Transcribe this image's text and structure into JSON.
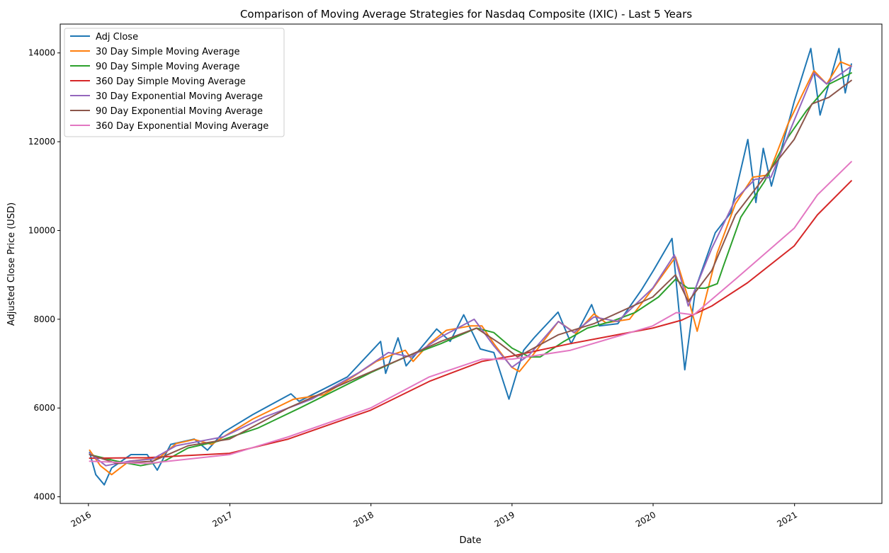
{
  "chart_data": {
    "type": "line",
    "title": "Comparison of Moving Average Strategies for Nasdaq Composite (IXIC) - Last 5 Years",
    "xlabel": "Date",
    "ylabel": "Adjusted Close Price (USD)",
    "xlim": [
      "2015-10-20",
      "2021-08-15"
    ],
    "ylim": [
      3850,
      14650
    ],
    "x_ticks": [
      {
        "date": "2016-01-01",
        "label": "2016"
      },
      {
        "date": "2017-01-01",
        "label": "2017"
      },
      {
        "date": "2018-01-01",
        "label": "2018"
      },
      {
        "date": "2019-01-01",
        "label": "2019"
      },
      {
        "date": "2020-01-01",
        "label": "2020"
      },
      {
        "date": "2021-01-01",
        "label": "2021"
      }
    ],
    "y_ticks": [
      4000,
      6000,
      8000,
      10000,
      12000,
      14000
    ],
    "grid": false,
    "legend_position": "top-left",
    "series": [
      {
        "name": "Adj Close",
        "color": "#1f77b4",
        "x": [
          "2016-01-04",
          "2016-01-20",
          "2016-02-11",
          "2016-03-01",
          "2016-04-20",
          "2016-06-01",
          "2016-06-27",
          "2016-08-01",
          "2016-10-01",
          "2016-11-04",
          "2016-12-15",
          "2017-03-01",
          "2017-06-08",
          "2017-06-29",
          "2017-09-01",
          "2017-11-01",
          "2018-01-26",
          "2018-02-08",
          "2018-03-12",
          "2018-04-02",
          "2018-06-20",
          "2018-07-25",
          "2018-08-29",
          "2018-10-11",
          "2018-11-15",
          "2018-12-24",
          "2019-01-31",
          "2019-03-01",
          "2019-04-30",
          "2019-06-03",
          "2019-07-26",
          "2019-08-15",
          "2019-10-02",
          "2019-12-01",
          "2020-01-02",
          "2020-02-19",
          "2020-03-09",
          "2020-03-23",
          "2020-04-20",
          "2020-06-10",
          "2020-07-20",
          "2020-09-02",
          "2020-09-23",
          "2020-10-12",
          "2020-11-02",
          "2020-12-31",
          "2021-02-12",
          "2021-03-08",
          "2021-04-26",
          "2021-05-12",
          "2021-05-28"
        ],
        "values": [
          5000,
          4500,
          4270,
          4650,
          4950,
          4950,
          4600,
          5180,
          5300,
          5050,
          5450,
          5850,
          6320,
          6150,
          6430,
          6700,
          7500,
          6780,
          7580,
          6950,
          7780,
          7500,
          8100,
          7330,
          7250,
          6200,
          7300,
          7600,
          8160,
          7450,
          8330,
          7850,
          7900,
          8650,
          9100,
          9820,
          8100,
          6860,
          8700,
          9950,
          10400,
          12050,
          10630,
          11850,
          11000,
          12900,
          14100,
          12600,
          14100,
          13100,
          13750
        ]
      },
      {
        "name": "30 Day Simple Moving Average",
        "color": "#ff7f0e",
        "x": [
          "2016-01-04",
          "2016-02-01",
          "2016-03-01",
          "2016-04-15",
          "2016-06-01",
          "2016-07-01",
          "2016-08-15",
          "2016-10-01",
          "2016-11-15",
          "2016-12-15",
          "2017-03-01",
          "2017-06-15",
          "2017-09-01",
          "2017-11-15",
          "2018-01-15",
          "2018-02-25",
          "2018-03-31",
          "2018-04-20",
          "2018-06-01",
          "2018-07-15",
          "2018-09-15",
          "2018-10-15",
          "2018-11-15",
          "2018-12-31",
          "2019-01-20",
          "2019-03-01",
          "2019-05-01",
          "2019-06-15",
          "2019-08-01",
          "2019-09-01",
          "2019-11-01",
          "2020-01-01",
          "2020-02-28",
          "2020-03-31",
          "2020-04-24",
          "2020-06-15",
          "2020-08-01",
          "2020-09-15",
          "2020-10-25",
          "2020-12-15",
          "2021-02-20",
          "2021-03-25",
          "2021-04-30",
          "2021-05-28"
        ],
        "values": [
          5050,
          4700,
          4500,
          4800,
          4850,
          4870,
          5200,
          5290,
          5180,
          5350,
          5750,
          6200,
          6300,
          6700,
          7050,
          7200,
          7300,
          7050,
          7450,
          7750,
          7850,
          7850,
          7450,
          6920,
          6820,
          7250,
          7950,
          7680,
          8120,
          7920,
          8000,
          8700,
          9400,
          8500,
          7730,
          9500,
          10600,
          11200,
          11250,
          12400,
          13600,
          13300,
          13800,
          13700
        ]
      },
      {
        "name": "90 Day Simple Moving Average",
        "color": "#2ca02c",
        "x": [
          "2016-01-04",
          "2016-03-15",
          "2016-05-15",
          "2016-07-15",
          "2016-09-15",
          "2016-12-01",
          "2017-03-15",
          "2017-07-01",
          "2017-10-01",
          "2018-01-01",
          "2018-04-01",
          "2018-07-01",
          "2018-10-01",
          "2018-11-15",
          "2019-01-01",
          "2019-02-15",
          "2019-03-15",
          "2019-05-15",
          "2019-07-15",
          "2019-09-15",
          "2019-11-15",
          "2020-01-15",
          "2020-02-28",
          "2020-03-31",
          "2020-05-15",
          "2020-06-15",
          "2020-07-01",
          "2020-08-15",
          "2020-10-15",
          "2020-12-15",
          "2021-02-01",
          "2021-04-01",
          "2021-05-28"
        ],
        "values": [
          4950,
          4800,
          4700,
          4800,
          5100,
          5250,
          5550,
          6000,
          6400,
          6800,
          7150,
          7450,
          7800,
          7700,
          7350,
          7150,
          7150,
          7500,
          7800,
          7950,
          8150,
          8500,
          8900,
          8700,
          8700,
          8800,
          9200,
          10300,
          11100,
          12100,
          12700,
          13300,
          13550
        ]
      },
      {
        "name": "360 Day Simple Moving Average",
        "color": "#d62728",
        "x": [
          "2016-01-04",
          "2016-06-01",
          "2016-12-31",
          "2017-06-01",
          "2017-12-31",
          "2018-06-01",
          "2018-10-15",
          "2019-01-01",
          "2019-06-01",
          "2019-12-31",
          "2020-03-15",
          "2020-06-01",
          "2020-09-01",
          "2020-12-31",
          "2021-03-01",
          "2021-05-28"
        ],
        "values": [
          4870,
          4880,
          4980,
          5300,
          5950,
          6600,
          7050,
          7170,
          7450,
          7800,
          7980,
          8300,
          8820,
          9650,
          10350,
          11120
        ]
      },
      {
        "name": "30 Day Exponential Moving Average",
        "color": "#9467bd",
        "x": [
          "2016-01-04",
          "2016-02-15",
          "2016-04-15",
          "2016-06-15",
          "2016-08-15",
          "2016-10-15",
          "2016-12-15",
          "2017-04-01",
          "2017-08-01",
          "2017-12-01",
          "2018-02-15",
          "2018-04-15",
          "2018-07-01",
          "2018-09-25",
          "2018-11-15",
          "2019-01-01",
          "2019-02-15",
          "2019-05-01",
          "2019-06-10",
          "2019-08-01",
          "2019-10-01",
          "2019-12-31",
          "2020-02-25",
          "2020-04-01",
          "2020-06-01",
          "2020-08-01",
          "2020-09-20",
          "2020-11-01",
          "2021-01-01",
          "2021-02-20",
          "2021-03-25",
          "2021-05-28"
        ],
        "values": [
          4980,
          4700,
          4800,
          4850,
          5150,
          5250,
          5350,
          5800,
          6200,
          6800,
          7250,
          7150,
          7600,
          8000,
          7400,
          6920,
          7200,
          7950,
          7700,
          8050,
          7950,
          8700,
          9450,
          8300,
          9600,
          10700,
          11150,
          11200,
          12500,
          13550,
          13300,
          13700
        ]
      },
      {
        "name": "90 Day Exponential Moving Average",
        "color": "#8c564b",
        "x": [
          "2016-01-04",
          "2016-03-15",
          "2016-06-15",
          "2016-09-15",
          "2016-12-31",
          "2017-06-01",
          "2017-12-01",
          "2018-04-01",
          "2018-07-01",
          "2018-10-01",
          "2018-12-01",
          "2019-01-15",
          "2019-05-01",
          "2019-08-01",
          "2019-12-31",
          "2020-02-28",
          "2020-04-01",
          "2020-06-01",
          "2020-08-01",
          "2020-10-15",
          "2020-12-31",
          "2021-02-15",
          "2021-03-31",
          "2021-05-28"
        ],
        "values": [
          4950,
          4750,
          4800,
          5150,
          5300,
          6000,
          6700,
          7150,
          7500,
          7800,
          7450,
          7150,
          7650,
          7900,
          8500,
          9000,
          8400,
          9100,
          10350,
          11200,
          12050,
          12850,
          13000,
          13380
        ]
      },
      {
        "name": "360 Day Exponential Moving Average",
        "color": "#e377c2",
        "x": [
          "2016-01-04",
          "2016-06-01",
          "2016-12-31",
          "2017-06-01",
          "2017-12-31",
          "2018-06-01",
          "2018-10-15",
          "2019-01-01",
          "2019-06-01",
          "2019-12-31",
          "2020-03-01",
          "2020-04-15",
          "2020-08-01",
          "2020-12-31",
          "2021-03-01",
          "2021-05-28"
        ],
        "values": [
          4800,
          4750,
          4950,
          5350,
          6000,
          6700,
          7100,
          7100,
          7300,
          7850,
          8150,
          8100,
          8900,
          10050,
          10800,
          11550
        ]
      }
    ]
  }
}
